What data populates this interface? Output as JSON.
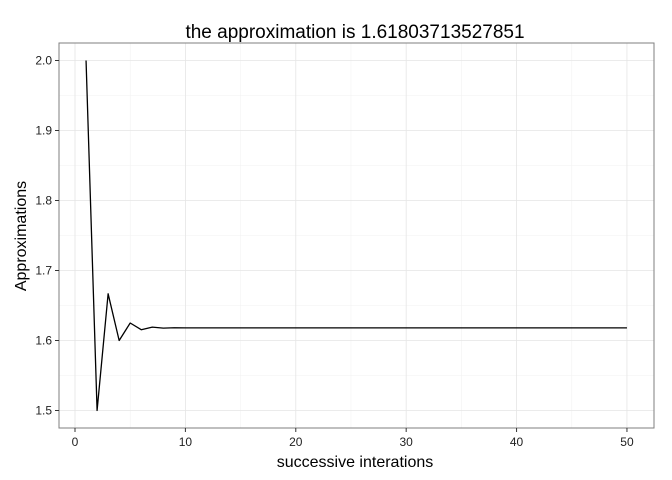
{
  "chart_data": {
    "type": "line",
    "title": "the approximation is 1.61803713527851",
    "xlabel": "successive interations",
    "ylabel": "Approximations",
    "xlim": [
      -1.45,
      52.45
    ],
    "ylim": [
      1.475,
      2.025
    ],
    "x_ticks": [
      0,
      10,
      20,
      30,
      40,
      50
    ],
    "x_tick_labels": [
      "0",
      "10",
      "20",
      "30",
      "40",
      "50"
    ],
    "y_ticks": [
      1.5,
      1.6,
      1.7,
      1.8,
      1.9,
      2.0
    ],
    "y_tick_labels": [
      "1.5",
      "1.6",
      "1.7",
      "1.8",
      "1.9",
      "2.0"
    ],
    "grid": true,
    "series": [
      {
        "name": "approximation",
        "color": "#000000",
        "x": [
          1,
          2,
          3,
          4,
          5,
          6,
          7,
          8,
          9,
          10,
          11,
          12,
          13,
          14,
          15,
          16,
          17,
          18,
          19,
          20,
          21,
          22,
          23,
          24,
          25,
          26,
          27,
          28,
          29,
          30,
          31,
          32,
          33,
          34,
          35,
          36,
          37,
          38,
          39,
          40,
          41,
          42,
          43,
          44,
          45,
          46,
          47,
          48,
          49,
          50
        ],
        "y": [
          2.0,
          1.5,
          1.66667,
          1.6,
          1.625,
          1.61538,
          1.61905,
          1.61765,
          1.61818,
          1.61798,
          1.61806,
          1.61803,
          1.61804,
          1.61803,
          1.61803,
          1.61803,
          1.61803,
          1.61803,
          1.61803,
          1.61803,
          1.61803,
          1.61803,
          1.61803,
          1.61803,
          1.61803,
          1.61803,
          1.61803,
          1.61803,
          1.61803,
          1.61803,
          1.61803,
          1.61803,
          1.61803,
          1.61803,
          1.61803,
          1.61803,
          1.61803,
          1.61803,
          1.61803,
          1.61803,
          1.61803,
          1.61803,
          1.61803,
          1.61803,
          1.61803,
          1.61803,
          1.61803,
          1.61803,
          1.61803,
          1.61803
        ]
      }
    ]
  }
}
